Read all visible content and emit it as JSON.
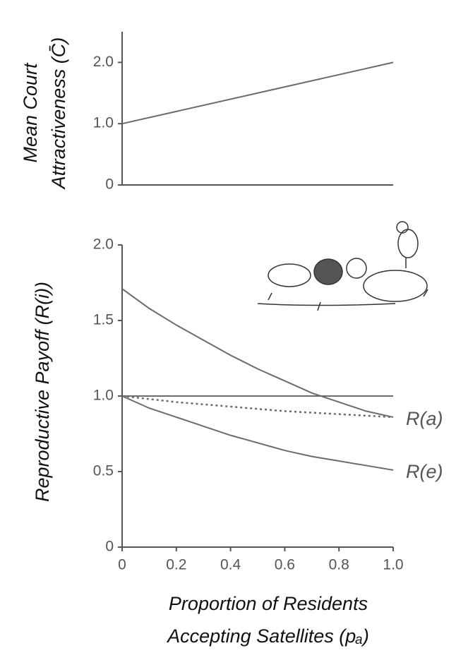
{
  "chart_data": [
    {
      "type": "line",
      "ylabel": [
        "Mean Court",
        "Attractiveness (C̄)"
      ],
      "x": [
        0,
        1
      ],
      "series": [
        {
          "color": "#6b6b6b",
          "values": [
            1.0,
            2.0
          ]
        }
      ],
      "xlim": [
        0,
        1
      ],
      "ylim": [
        0,
        2.5
      ],
      "yticks": [
        0,
        {
          "value": 1,
          "label": "1.0"
        },
        {
          "value": 2,
          "label": "2.0"
        }
      ]
    },
    {
      "type": "line",
      "ylabel": [
        "Reproductive Payoff (R(i))"
      ],
      "xlabel": [
        "Proportion of Residents",
        "Accepting Satellites (pₐ)"
      ],
      "x": [
        0,
        0.1,
        0.2,
        0.3,
        0.4,
        0.5,
        0.6,
        0.7,
        0.8,
        0.9,
        1.0
      ],
      "series": [
        {
          "color": "#6b6b6b",
          "values": [
            1,
            1,
            1,
            1,
            1,
            1,
            1,
            1,
            1,
            1,
            1
          ]
        },
        {
          "name": "R(a)",
          "color": "#6b6b6b",
          "values": [
            1.71,
            1.58,
            1.47,
            1.37,
            1.27,
            1.18,
            1.1,
            1.02,
            0.96,
            0.9,
            0.86
          ]
        },
        {
          "color": "#6b6b6b",
          "style": "dotted",
          "values": [
            1.0,
            0.98,
            0.96,
            0.945,
            0.93,
            0.915,
            0.9,
            0.89,
            0.88,
            0.87,
            0.86
          ]
        },
        {
          "name": "R(e)",
          "color": "#6b6b6b",
          "values": [
            1.0,
            0.92,
            0.86,
            0.8,
            0.74,
            0.69,
            0.64,
            0.6,
            0.57,
            0.54,
            0.51
          ]
        }
      ],
      "xlim": [
        0,
        1
      ],
      "ylim": [
        0,
        2
      ],
      "xticks": [
        0,
        0.2,
        0.4,
        0.6,
        0.8,
        {
          "value": 1,
          "label": "1.0"
        }
      ],
      "yticks": [
        0,
        {
          "value": 0.5,
          "label": "0.5"
        },
        {
          "value": 1,
          "label": "1.0"
        },
        {
          "value": 1.5,
          "label": "1.5"
        },
        {
          "value": 2,
          "label": "2.0"
        }
      ]
    }
  ]
}
